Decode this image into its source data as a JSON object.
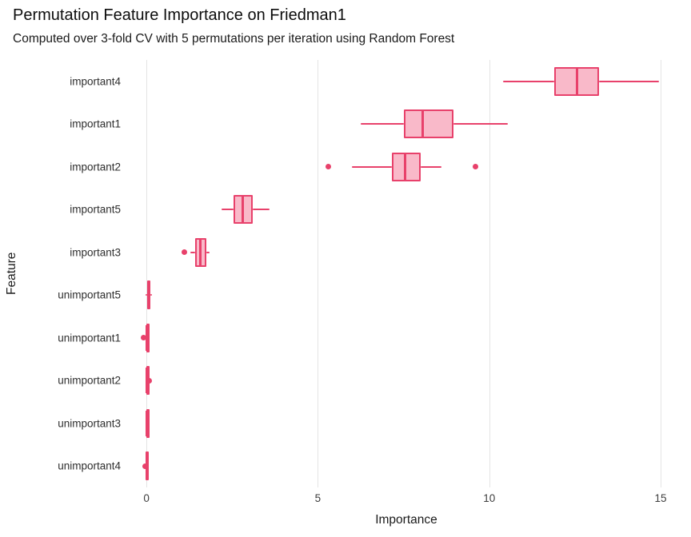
{
  "header": {
    "title": "Permutation Feature Importance on Friedman1",
    "subtitle": "Computed over 3-fold CV with 5 permutations per iteration using Random Forest"
  },
  "chart_data": {
    "type": "boxplot",
    "orientation": "horizontal",
    "title": "Permutation Feature Importance on Friedman1",
    "subtitle": "Computed over 3-fold CV with 5 permutations per iteration using Random Forest",
    "xlabel": "Importance",
    "ylabel": "Feature",
    "xlim": [
      -0.19,
      15.35
    ],
    "xticks": [
      0,
      5,
      10,
      15
    ],
    "grid": "vertical-major-only",
    "legend": "none",
    "colors": {
      "box_stroke": "#e8416b",
      "box_fill": "#f9b9c9",
      "outlier": "#e8416b",
      "gridline": "#e4e4e4"
    },
    "features": [
      {
        "label": "important4",
        "whisker_low": 10.4,
        "q1": 11.9,
        "median": 12.55,
        "q3": 13.2,
        "whisker_high": 14.95,
        "outliers": []
      },
      {
        "label": "important1",
        "whisker_low": 6.25,
        "q1": 7.5,
        "median": 8.05,
        "q3": 8.95,
        "whisker_high": 10.55,
        "outliers": []
      },
      {
        "label": "important2",
        "whisker_low": 6.0,
        "q1": 7.15,
        "median": 7.55,
        "q3": 8.0,
        "whisker_high": 8.6,
        "outliers": [
          5.3,
          9.6
        ]
      },
      {
        "label": "important5",
        "whisker_low": 2.2,
        "q1": 2.55,
        "median": 2.8,
        "q3": 3.1,
        "whisker_high": 3.6,
        "outliers": []
      },
      {
        "label": "important3",
        "whisker_low": 1.27,
        "q1": 1.42,
        "median": 1.57,
        "q3": 1.74,
        "whisker_high": 1.84,
        "outliers": [
          1.1
        ]
      },
      {
        "label": "unimportant5",
        "whisker_low": -0.03,
        "q1": 0.01,
        "median": 0.06,
        "q3": 0.12,
        "whisker_high": 0.16,
        "outliers": []
      },
      {
        "label": "unimportant1",
        "whisker_low": -0.03,
        "q1": -0.01,
        "median": 0.01,
        "q3": 0.03,
        "whisker_high": 0.05,
        "outliers": [
          -0.08
        ]
      },
      {
        "label": "unimportant2",
        "whisker_low": -0.02,
        "q1": 0.0,
        "median": 0.01,
        "q3": 0.03,
        "whisker_high": 0.04,
        "outliers": [
          0.08
        ]
      },
      {
        "label": "unimportant3",
        "whisker_low": -0.02,
        "q1": -0.01,
        "median": 0.0,
        "q3": 0.01,
        "whisker_high": 0.02,
        "outliers": []
      },
      {
        "label": "unimportant4",
        "whisker_low": -0.03,
        "q1": -0.02,
        "median": 0.0,
        "q3": 0.01,
        "whisker_high": 0.02,
        "outliers": [
          -0.05
        ]
      }
    ]
  }
}
